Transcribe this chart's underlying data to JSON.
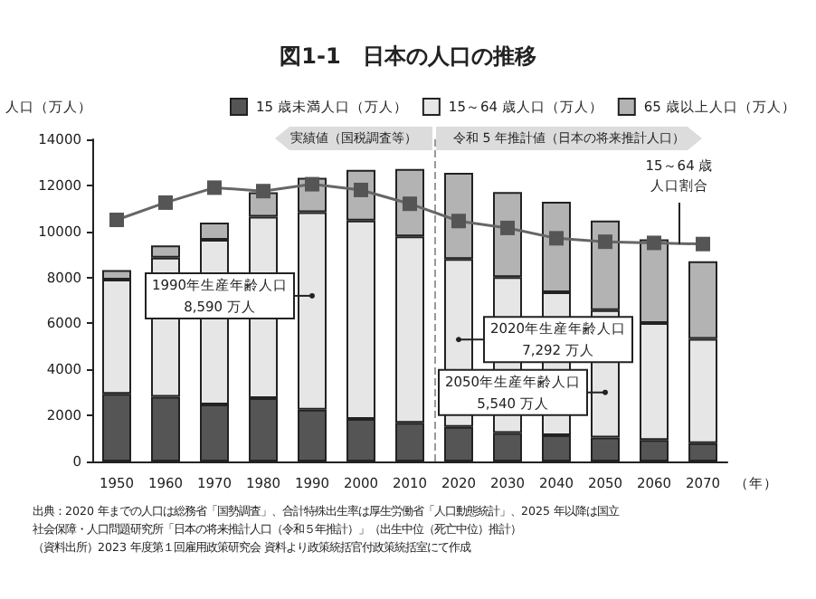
{
  "chart_data": {
    "type": "bar",
    "title": "図1-1　日本の人口の推移",
    "ylabel": "人口（万人）",
    "xlabel": "（年）",
    "x": [
      1950,
      1960,
      1970,
      1980,
      1990,
      2000,
      2010,
      2020,
      2030,
      2040,
      2050,
      2060,
      2070
    ],
    "xlim": [
      1945,
      2075
    ],
    "xticks": [
      1950,
      1960,
      1970,
      1980,
      1990,
      2000,
      2010,
      2020,
      2030,
      2040,
      2050,
      2060,
      2070
    ],
    "ylim": [
      0,
      14000
    ],
    "yticks": [
      0,
      2000,
      4000,
      6000,
      8000,
      10000,
      12000,
      14000
    ],
    "stacked": true,
    "legend": "top",
    "grid": false,
    "marker": "square",
    "line_style": "solid",
    "series": [
      {
        "name": "15 歳未満人口（万人）",
        "color": "#555555",
        "values": [
          2943,
          2807,
          2482,
          2751,
          2249,
          1847,
          1680,
          1503,
          1240,
          1142,
          1041,
          937,
          797
        ]
      },
      {
        "name": "15～64 歳人口（万人）",
        "color": "#e6e6e6",
        "values": [
          4966,
          6047,
          7157,
          7883,
          8590,
          8622,
          8103,
          7292,
          6773,
          6213,
          5540,
          5078,
          4535
        ]
      },
      {
        "name": "65 歳以上人口（万人）",
        "color": "#b3b3b3",
        "values": [
          411,
          535,
          739,
          1065,
          1489,
          2201,
          2925,
          3750,
          3696,
          3929,
          3888,
          3644,
          3367
        ]
      },
      {
        "name": "15～64 歳人口割合",
        "type": "line",
        "color": "#666666",
        "values": [
          10500,
          11250,
          11900,
          11750,
          12050,
          11800,
          11200,
          10450,
          10150,
          9700,
          9550,
          9500,
          9450
        ]
      }
    ],
    "ref_lines": [
      {
        "axis": "x",
        "value": 2015,
        "line_style": "dashed",
        "color": "#999999"
      }
    ],
    "annotations": [
      {
        "text": "1990年生産年齢人口\n8,590 万人",
        "x": 1990,
        "y": 7200
      },
      {
        "text": "2020年生産年齢人口\n7,292 万人",
        "x": 2020,
        "y": 5300
      },
      {
        "text": "2050年生産年齢人口\n5,540 万人",
        "x": 2050,
        "y": 3000
      },
      "実績値（国税調査等）",
      "令和 5 年推計値（日本の将来推計人口）",
      "出典：2020 年までの人口は総務省「国勢調査」、合計特殊出生率は厚生労働省「人口動態統計」、2025 年以降は国立",
      "社会保障・人口問題研究所「日本の将来推計人口（令和５年推計）」（出生中位（死亡中位）推計）",
      "（資料出所）2023 年度第１回雇用政策研究会 資料より政策統括官付政策統括室にて作成"
    ]
  }
}
